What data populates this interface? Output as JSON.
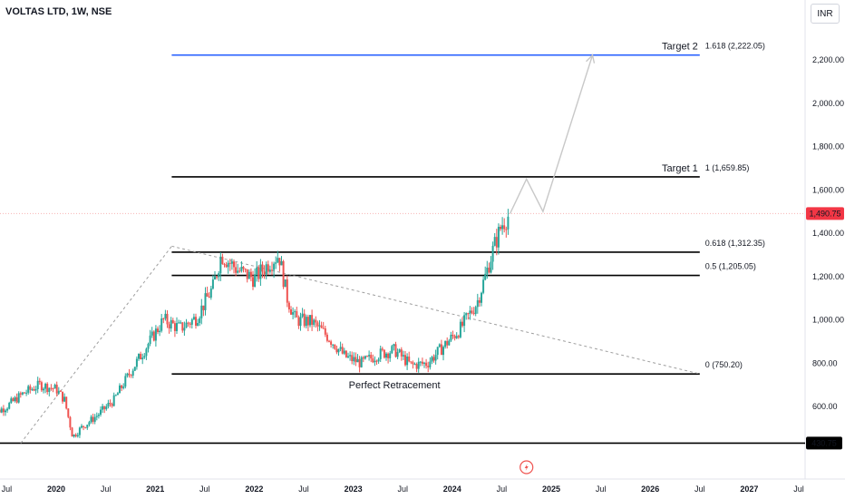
{
  "header": {
    "symbol": "VOLTAS LTD, 1W, NSE",
    "currency": "INR"
  },
  "chart_data": {
    "type": "candlestick",
    "y_axis": {
      "ticks": [
        600,
        800,
        1000,
        1200,
        1400,
        1600,
        1800,
        2000,
        2200
      ],
      "tick_labels": [
        "600.00",
        "800.00",
        "1,000.00",
        "1,200.00",
        "1,400.00",
        "1,600.00",
        "1,800.00",
        "2,000.00",
        "2,200.00"
      ],
      "range": [
        360,
        2400
      ]
    },
    "x_axis": {
      "tick_labels": [
        "Jul",
        "2020",
        "Jul",
        "2021",
        "Jul",
        "2022",
        "Jul",
        "2023",
        "Jul",
        "2024",
        "Jul",
        "2025",
        "Jul",
        "2026",
        "Jul",
        "2027",
        "Jul"
      ]
    },
    "last_price": {
      "value": 1490.75,
      "label": "1,490.75",
      "color": "#f23645"
    },
    "support_price": {
      "value": 430.75,
      "label": "430.75"
    },
    "fib_levels": [
      {
        "ratio": 1.618,
        "price": 2222.05,
        "label": "1.618 (2,222.05)",
        "name": "Target 2",
        "color": "#2962ff"
      },
      {
        "ratio": 1,
        "price": 1659.85,
        "label": "1 (1,659.85)",
        "name": "Target 1",
        "color": "#000000"
      },
      {
        "ratio": 0.618,
        "price": 1312.35,
        "label": "0.618 (1,312.35)",
        "color": "#000000"
      },
      {
        "ratio": 0.5,
        "price": 1205.05,
        "label": "0.5 (1,205.05)",
        "color": "#000000"
      },
      {
        "ratio": 0,
        "price": 750.2,
        "label": "0 (750.20)",
        "color": "#000000"
      }
    ],
    "annotations": {
      "retracement_note": "Perfect Retracement"
    },
    "colors": {
      "up": "#26a69a",
      "down": "#ef5350",
      "fib_main": "#000000",
      "fib_ext": "#2962ff",
      "projection": "#c8c8c8"
    },
    "price_path": [
      [
        "2019-05",
        560
      ],
      [
        "2019-07",
        600
      ],
      [
        "2019-09",
        660
      ],
      [
        "2019-11",
        700
      ],
      [
        "2020-01",
        680
      ],
      [
        "2020-02",
        630
      ],
      [
        "2020-03",
        460
      ],
      [
        "2020-04",
        500
      ],
      [
        "2020-06",
        560
      ],
      [
        "2020-08",
        630
      ],
      [
        "2020-10",
        760
      ],
      [
        "2020-12",
        880
      ],
      [
        "2021-02",
        1000
      ],
      [
        "2021-04",
        960
      ],
      [
        "2021-06",
        1010
      ],
      [
        "2021-08",
        1150
      ],
      [
        "2021-09",
        1300
      ],
      [
        "2021-11",
        1230
      ],
      [
        "2022-01",
        1190
      ],
      [
        "2022-03",
        1270
      ],
      [
        "2022-04",
        1300
      ],
      [
        "2022-05",
        1100
      ],
      [
        "2022-06",
        1000
      ],
      [
        "2022-08",
        990
      ],
      [
        "2022-10",
        920
      ],
      [
        "2022-12",
        830
      ],
      [
        "2023-02",
        800
      ],
      [
        "2023-04",
        840
      ],
      [
        "2023-06",
        860
      ],
      [
        "2023-08",
        790
      ],
      [
        "2023-10",
        800
      ],
      [
        "2023-12",
        880
      ],
      [
        "2024-02",
        960
      ],
      [
        "2024-04",
        1080
      ],
      [
        "2024-05",
        1200
      ],
      [
        "2024-06",
        1330
      ],
      [
        "2024-07",
        1440
      ],
      [
        "2024-08",
        1490
      ]
    ],
    "projection_path": [
      [
        "2024-08",
        1490
      ],
      [
        "2024-10",
        1650
      ],
      [
        "2024-12",
        1500
      ],
      [
        "2025-06",
        2222
      ]
    ]
  }
}
